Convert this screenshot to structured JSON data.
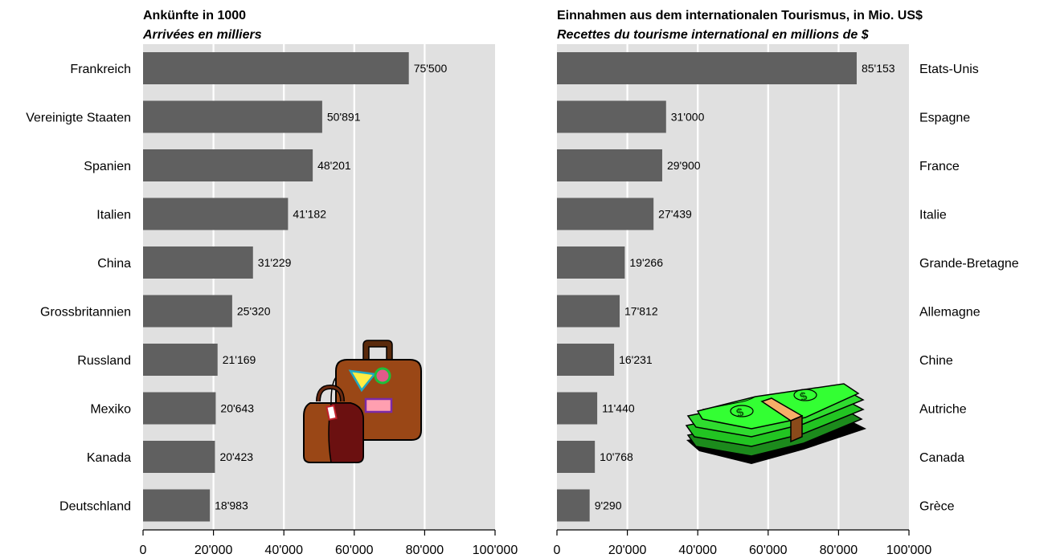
{
  "chart_data": [
    {
      "type": "bar",
      "orientation": "horizontal",
      "title": "Ankünfte in 1000",
      "subtitle": "Arrivées en milliers",
      "categories": [
        "Frankreich",
        "Vereinigte Staaten",
        "Spanien",
        "Italien",
        "China",
        "Grossbritannien",
        "Russland",
        "Mexiko",
        "Kanada",
        "Deutschland"
      ],
      "values": [
        75500,
        50891,
        48201,
        41182,
        31229,
        25320,
        21169,
        20643,
        20423,
        18983
      ],
      "value_labels": [
        "75'500",
        "50'891",
        "48'201",
        "41'182",
        "31'229",
        "25'320",
        "21'169",
        "20'643",
        "20'423",
        "18'983"
      ],
      "xlim": [
        0,
        100000
      ],
      "ticks": [
        0,
        20000,
        40000,
        60000,
        80000,
        100000
      ],
      "tick_labels": [
        "0",
        "20'000",
        "40'000",
        "60'000",
        "80'000",
        "100'000"
      ],
      "category_label_side": "left",
      "grid": true,
      "bar_color": "#606060",
      "plot_background": "#e0e0e0",
      "illustration": "suitcases-icon"
    },
    {
      "type": "bar",
      "orientation": "horizontal",
      "title": "Einnahmen aus dem internationalen Tourismus, in Mio. US$",
      "subtitle": "Recettes du tourisme international en millions de $",
      "categories": [
        "Etats-Unis",
        "Espagne",
        "France",
        "Italie",
        "Grande-Bretagne",
        "Allemagne",
        "Chine",
        "Autriche",
        "Canada",
        "Grèce"
      ],
      "values": [
        85153,
        31000,
        29900,
        27439,
        19266,
        17812,
        16231,
        11440,
        10768,
        9290
      ],
      "value_labels": [
        "85'153",
        "31'000",
        "29'900",
        "27'439",
        "19'266",
        "17'812",
        "16'231",
        "11'440",
        "10'768",
        "9'290"
      ],
      "xlim": [
        0,
        100000
      ],
      "ticks": [
        0,
        20000,
        40000,
        60000,
        80000,
        100000
      ],
      "tick_labels": [
        "0",
        "20'000",
        "40'000",
        "60'000",
        "80'000",
        "100'000"
      ],
      "category_label_side": "right",
      "grid": true,
      "bar_color": "#606060",
      "plot_background": "#e0e0e0",
      "illustration": "money-stack-icon"
    }
  ]
}
